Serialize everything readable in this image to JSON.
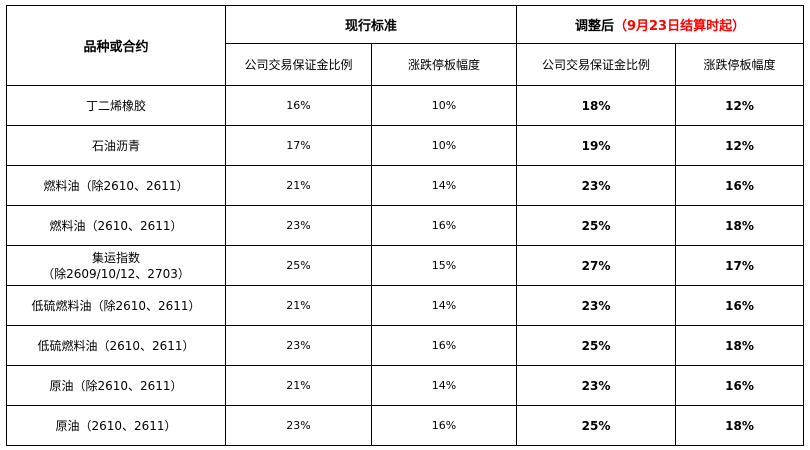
{
  "header": {
    "variety_contract": "品种或合约",
    "current_standard": "现行标准",
    "adjusted_main": "调整后",
    "adjusted_note": "（9月23日结算时起）",
    "margin_ratio": "公司交易保证金比例",
    "price_limit": "涨跌停板幅度"
  },
  "colors": {
    "note": "#ff0000",
    "border": "#000000"
  },
  "rows": [
    {
      "name": "丁二烯橡胶",
      "cur_margin": "16%",
      "cur_limit": "10%",
      "new_margin": "18%",
      "new_limit": "12%"
    },
    {
      "name": "石油沥青",
      "cur_margin": "17%",
      "cur_limit": "10%",
      "new_margin": "19%",
      "new_limit": "12%"
    },
    {
      "name": "燃料油（除2610、2611）",
      "cur_margin": "21%",
      "cur_limit": "14%",
      "new_margin": "23%",
      "new_limit": "16%"
    },
    {
      "name": "燃料油（2610、2611）",
      "cur_margin": "23%",
      "cur_limit": "16%",
      "new_margin": "25%",
      "new_limit": "18%"
    },
    {
      "name": "集运指数",
      "name_line2": "（除2609/10/12、2703）",
      "cur_margin": "25%",
      "cur_limit": "15%",
      "new_margin": "27%",
      "new_limit": "17%"
    },
    {
      "name": "低硫燃料油（除2610、2611）",
      "cur_margin": "21%",
      "cur_limit": "14%",
      "new_margin": "23%",
      "new_limit": "16%"
    },
    {
      "name": "低硫燃料油（2610、2611）",
      "cur_margin": "23%",
      "cur_limit": "16%",
      "new_margin": "25%",
      "new_limit": "18%"
    },
    {
      "name": "原油（除2610、2611）",
      "cur_margin": "21%",
      "cur_limit": "14%",
      "new_margin": "23%",
      "new_limit": "16%"
    },
    {
      "name": "原油（2610、2611）",
      "cur_margin": "23%",
      "cur_limit": "16%",
      "new_margin": "25%",
      "new_limit": "18%"
    }
  ]
}
